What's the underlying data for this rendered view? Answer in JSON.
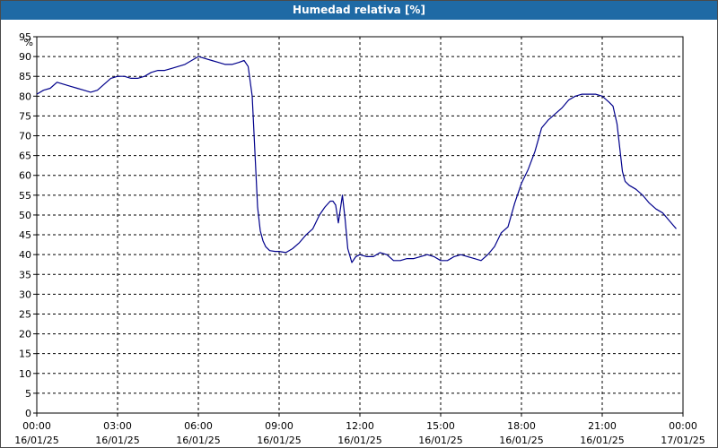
{
  "window": {
    "title": "Humedad relativa [%]"
  },
  "chart_data": {
    "type": "line",
    "title": "Humedad relativa [%]",
    "ylabel": "%",
    "ylim": [
      0,
      95
    ],
    "y_ticks": [
      0,
      5,
      10,
      15,
      20,
      25,
      30,
      35,
      40,
      45,
      50,
      55,
      60,
      65,
      70,
      75,
      80,
      85,
      90,
      95
    ],
    "xlim_hours": [
      0,
      24
    ],
    "x_ticks": [
      {
        "time": "00:00",
        "date": "16/01/25"
      },
      {
        "time": "03:00",
        "date": "16/01/25"
      },
      {
        "time": "06:00",
        "date": "16/01/25"
      },
      {
        "time": "09:00",
        "date": "16/01/25"
      },
      {
        "time": "12:00",
        "date": "16/01/25"
      },
      {
        "time": "15:00",
        "date": "16/01/25"
      },
      {
        "time": "18:00",
        "date": "16/01/25"
      },
      {
        "time": "21:00",
        "date": "16/01/25"
      },
      {
        "time": "00:00",
        "date": "17/01/25"
      }
    ],
    "grid": true,
    "colors": {
      "line": "#00008b",
      "grid": "#000000",
      "axis": "#000000"
    },
    "series": [
      {
        "x_hours": [
          0.0,
          0.25,
          0.5,
          0.75,
          1.0,
          1.25,
          1.5,
          1.75,
          2.0,
          2.25,
          2.5,
          2.75,
          3.0,
          3.25,
          3.5,
          3.75,
          4.0,
          4.25,
          4.5,
          4.75,
          5.0,
          5.25,
          5.5,
          5.75,
          6.0,
          6.25,
          6.5,
          6.75,
          7.0,
          7.25,
          7.5,
          7.7,
          7.85,
          8.0,
          8.1,
          8.2,
          8.3,
          8.4,
          8.5,
          8.65,
          8.85,
          9.0,
          9.25,
          9.5,
          9.75,
          10.0,
          10.25,
          10.5,
          10.7,
          10.9,
          11.0,
          11.1,
          11.2,
          11.35,
          11.45,
          11.55,
          11.7,
          11.85,
          12.0,
          12.25,
          12.5,
          12.75,
          13.0,
          13.25,
          13.5,
          13.75,
          14.0,
          14.25,
          14.5,
          14.75,
          15.0,
          15.25,
          15.5,
          15.75,
          16.0,
          16.25,
          16.5,
          16.75,
          17.0,
          17.25,
          17.5,
          17.75,
          18.0,
          18.25,
          18.5,
          18.75,
          19.0,
          19.25,
          19.5,
          19.75,
          20.0,
          20.25,
          20.5,
          20.75,
          21.0,
          21.25,
          21.4,
          21.55,
          21.65,
          21.75,
          21.85,
          22.0,
          22.25,
          22.5,
          22.75,
          23.0,
          23.25,
          23.5,
          23.75
        ],
        "values": [
          80.5,
          81.5,
          82.0,
          83.5,
          83.0,
          82.5,
          82.0,
          81.5,
          81.0,
          81.5,
          83.0,
          84.5,
          85.0,
          85.0,
          84.5,
          84.5,
          85.0,
          86.0,
          86.5,
          86.5,
          87.0,
          87.5,
          88.0,
          89.0,
          90.0,
          89.5,
          89.0,
          88.5,
          88.0,
          88.0,
          88.5,
          89.0,
          87.5,
          80.0,
          66.0,
          52.0,
          46.0,
          43.5,
          42.0,
          41.0,
          40.8,
          40.8,
          40.5,
          41.5,
          43.0,
          45.0,
          46.5,
          50.0,
          52.0,
          53.5,
          53.5,
          52.5,
          48.0,
          55.0,
          49.0,
          41.5,
          38.0,
          39.5,
          40.0,
          39.5,
          39.5,
          40.5,
          40.0,
          38.5,
          38.5,
          39.0,
          39.0,
          39.5,
          40.0,
          39.5,
          38.5,
          38.5,
          39.5,
          40.0,
          39.5,
          39.0,
          38.5,
          40.0,
          42.0,
          45.5,
          47.0,
          53.0,
          58.0,
          61.5,
          66.0,
          72.0,
          74.0,
          75.5,
          77.0,
          79.0,
          80.0,
          80.5,
          80.5,
          80.5,
          80.0,
          78.5,
          77.5,
          73.0,
          67.0,
          61.0,
          58.5,
          57.5,
          56.5,
          55.0,
          53.0,
          51.5,
          50.5,
          48.5,
          46.5
        ]
      }
    ]
  }
}
